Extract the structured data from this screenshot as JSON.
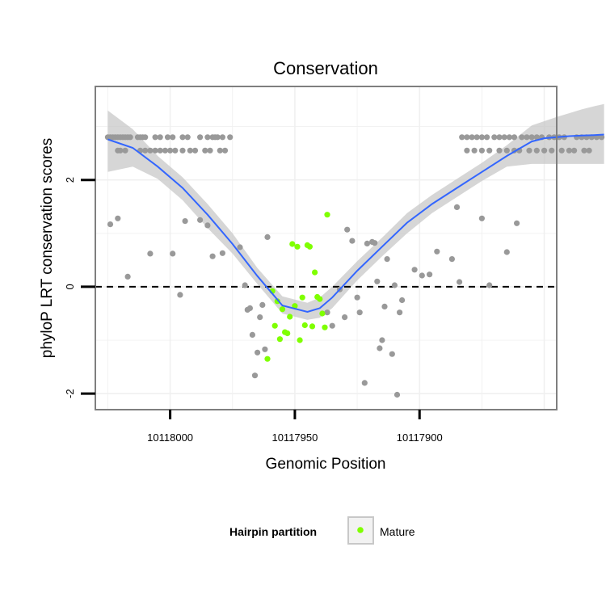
{
  "chart_data": {
    "type": "scatter",
    "title": "Conservation",
    "xlabel": "Genomic Position",
    "ylabel": "phyloP LRT conservation scores",
    "x_reversed": true,
    "xlim": [
      10118030,
      10117845
    ],
    "ylim": [
      -2.3,
      3.75
    ],
    "x_ticks": [
      10118000,
      10117950,
      10117900
    ],
    "y_ticks": [
      -2,
      0,
      2
    ],
    "reference_line": {
      "y": 0,
      "style": "dashed",
      "color": "#000000"
    },
    "grid": "on",
    "legend": {
      "title": "Hairpin partition",
      "position": "bottom",
      "entries": [
        "Mature"
      ]
    },
    "colors": {
      "other": "#999999",
      "mature": "#7fff00",
      "smooth_line": "#3366ff",
      "confidence_band": "#c8c8c8",
      "panel_border": "#7f7f7f",
      "gridline": "#f0f0f0"
    },
    "series": [
      {
        "group": "other",
        "points": [
          [
            10118025,
            2.8
          ],
          [
            10118024,
            2.8
          ],
          [
            10118023,
            2.8
          ],
          [
            10118022,
            2.8
          ],
          [
            10118021,
            2.8
          ],
          [
            10118020,
            2.8
          ],
          [
            10118019,
            2.8
          ],
          [
            10118018,
            2.8
          ],
          [
            10118017,
            2.8
          ],
          [
            10118016,
            2.8
          ],
          [
            10118013,
            2.8
          ],
          [
            10118012,
            2.8
          ],
          [
            10118011,
            2.8
          ],
          [
            10118010,
            2.8
          ],
          [
            10118006,
            2.8
          ],
          [
            10118004,
            2.8
          ],
          [
            10118001,
            2.8
          ],
          [
            10117999,
            2.8
          ],
          [
            10117995,
            2.8
          ],
          [
            10117993,
            2.8
          ],
          [
            10117988,
            2.8
          ],
          [
            10117985,
            2.8
          ],
          [
            10117983,
            2.8
          ],
          [
            10117982,
            2.8
          ],
          [
            10117981,
            2.8
          ],
          [
            10117979,
            2.8
          ],
          [
            10117976,
            2.8
          ],
          [
            10118021,
            2.55
          ],
          [
            10118020,
            2.55
          ],
          [
            10118018,
            2.55
          ],
          [
            10118012,
            2.55
          ],
          [
            10118010,
            2.55
          ],
          [
            10118008,
            2.55
          ],
          [
            10118006,
            2.55
          ],
          [
            10118004,
            2.55
          ],
          [
            10118002,
            2.55
          ],
          [
            10118000,
            2.55
          ],
          [
            10117998,
            2.55
          ],
          [
            10117995,
            2.55
          ],
          [
            10117992,
            2.55
          ],
          [
            10117990,
            2.55
          ],
          [
            10117986,
            2.55
          ],
          [
            10117984,
            2.55
          ],
          [
            10117980,
            2.55
          ],
          [
            10117978,
            2.55
          ],
          [
            10117883,
            2.8
          ],
          [
            10117881,
            2.8
          ],
          [
            10117879,
            2.8
          ],
          [
            10117877,
            2.8
          ],
          [
            10117875,
            2.8
          ],
          [
            10117873,
            2.8
          ],
          [
            10117870,
            2.8
          ],
          [
            10117868,
            2.8
          ],
          [
            10117866,
            2.8
          ],
          [
            10117864,
            2.8
          ],
          [
            10117862,
            2.8
          ],
          [
            10117859,
            2.8
          ],
          [
            10117857,
            2.8
          ],
          [
            10117855,
            2.8
          ],
          [
            10117853,
            2.8
          ],
          [
            10117851,
            2.8
          ],
          [
            10117848,
            2.8
          ],
          [
            10117846,
            2.8
          ],
          [
            10117844,
            2.8
          ],
          [
            10117842,
            2.8
          ],
          [
            10117837,
            2.8
          ],
          [
            10117835,
            2.8
          ],
          [
            10117833,
            2.8
          ],
          [
            10117831,
            2.8
          ],
          [
            10117829,
            2.8
          ],
          [
            10117827,
            2.8
          ],
          [
            10117881,
            2.55
          ],
          [
            10117878,
            2.55
          ],
          [
            10117875,
            2.55
          ],
          [
            10117872,
            2.55
          ],
          [
            10117868,
            2.55
          ],
          [
            10117865,
            2.55
          ],
          [
            10117862,
            2.55
          ],
          [
            10117860,
            2.55
          ],
          [
            10117856,
            2.55
          ],
          [
            10117853,
            2.55
          ],
          [
            10117850,
            2.55
          ],
          [
            10117847,
            2.55
          ],
          [
            10117843,
            2.55
          ],
          [
            10117840,
            2.55
          ],
          [
            10117838,
            2.55
          ],
          [
            10117834,
            2.55
          ],
          [
            10117832,
            2.55
          ],
          [
            10118024,
            1.17
          ],
          [
            10118021,
            1.28
          ],
          [
            10118017,
            0.19
          ],
          [
            10118008,
            0.62
          ],
          [
            10117999,
            0.62
          ],
          [
            10117996,
            -0.15
          ],
          [
            10117994,
            1.23
          ],
          [
            10117988,
            1.25
          ],
          [
            10117985,
            1.15
          ],
          [
            10117983,
            0.57
          ],
          [
            10117979,
            0.63
          ],
          [
            10117972,
            0.74
          ],
          [
            10117970,
            0.03
          ],
          [
            10117969,
            -0.43
          ],
          [
            10117968,
            -0.4
          ],
          [
            10117967,
            -0.9
          ],
          [
            10117966,
            -1.66
          ],
          [
            10117965,
            -1.23
          ],
          [
            10117964,
            -0.57
          ],
          [
            10117963,
            -0.34
          ],
          [
            10117962,
            -1.17
          ],
          [
            10117961,
            0.93
          ],
          [
            10117937,
            -0.48
          ],
          [
            10117935,
            -0.73
          ],
          [
            10117932,
            -0.05
          ],
          [
            10117930,
            -0.57
          ],
          [
            10117929,
            1.07
          ],
          [
            10117927,
            0.86
          ],
          [
            10117925,
            -0.2
          ],
          [
            10117924,
            -0.48
          ],
          [
            10117922,
            -1.8
          ],
          [
            10117921,
            0.81
          ],
          [
            10117919,
            0.84
          ],
          [
            10117918,
            0.82
          ],
          [
            10117917,
            0.1
          ],
          [
            10117916,
            -1.15
          ],
          [
            10117915,
            -1.0
          ],
          [
            10117914,
            -0.37
          ],
          [
            10117913,
            0.52
          ],
          [
            10117911,
            -1.26
          ],
          [
            10117910,
            0.03
          ],
          [
            10117909,
            -2.02
          ],
          [
            10117908,
            -0.48
          ],
          [
            10117907,
            -0.25
          ],
          [
            10117902,
            0.32
          ],
          [
            10117899,
            0.21
          ],
          [
            10117896,
            0.23
          ],
          [
            10117893,
            0.66
          ],
          [
            10117887,
            0.52
          ],
          [
            10117885,
            1.49
          ],
          [
            10117884,
            0.09
          ],
          [
            10117875,
            1.28
          ],
          [
            10117872,
            0.03
          ],
          [
            10117865,
            0.65
          ],
          [
            10117861,
            1.19
          ]
        ]
      },
      {
        "group": "mature",
        "name": "Mature",
        "points": [
          [
            10117959,
            -0.08
          ],
          [
            10117958,
            -0.73
          ],
          [
            10117957,
            -0.27
          ],
          [
            10117956,
            -0.98
          ],
          [
            10117955,
            -0.42
          ],
          [
            10117954,
            -0.85
          ],
          [
            10117953,
            -0.87
          ],
          [
            10117952,
            -0.56
          ],
          [
            10117951,
            0.8
          ],
          [
            10117950,
            -0.36
          ],
          [
            10117949,
            0.75
          ],
          [
            10117948,
            -1.0
          ],
          [
            10117947,
            -0.2
          ],
          [
            10117946,
            -0.72
          ],
          [
            10117945,
            0.78
          ],
          [
            10117944,
            0.75
          ],
          [
            10117943,
            -0.74
          ],
          [
            10117942,
            0.27
          ],
          [
            10117941,
            -0.19
          ],
          [
            10117940,
            -0.23
          ],
          [
            10117939,
            -0.5
          ],
          [
            10117938,
            -0.76
          ],
          [
            10117937,
            1.35
          ],
          [
            10117961,
            -1.35
          ]
        ]
      }
    ],
    "smooth": {
      "x": [
        10118025,
        10118015,
        10118005,
        10117995,
        10117985,
        10117975,
        10117965,
        10117955,
        10117945,
        10117940,
        10117935,
        10117925,
        10117915,
        10117905,
        10117895,
        10117885,
        10117875,
        10117865,
        10117855,
        10117850,
        10117845,
        10117840,
        10117835,
        10117830,
        10117826
      ],
      "y": [
        2.76,
        2.6,
        2.25,
        1.85,
        1.35,
        0.8,
        0.2,
        -0.35,
        -0.47,
        -0.4,
        -0.2,
        0.3,
        0.75,
        1.2,
        1.55,
        1.85,
        2.15,
        2.45,
        2.72,
        2.78,
        2.8,
        2.82,
        2.83,
        2.84,
        2.85
      ],
      "band_lower": [
        2.15,
        2.25,
        2.02,
        1.62,
        1.1,
        0.62,
        0.05,
        -0.5,
        -0.62,
        -0.58,
        -0.4,
        0.12,
        0.57,
        1.0,
        1.38,
        1.68,
        1.98,
        2.25,
        2.3,
        2.3,
        2.3,
        2.3,
        2.3,
        2.3,
        2.3
      ],
      "band_upper": [
        3.3,
        2.95,
        2.45,
        2.05,
        1.55,
        1.0,
        0.35,
        -0.18,
        -0.3,
        -0.2,
        0.0,
        0.48,
        0.92,
        1.38,
        1.72,
        2.02,
        2.32,
        2.65,
        3.02,
        3.1,
        3.18,
        3.25,
        3.32,
        3.38,
        3.42
      ]
    }
  }
}
